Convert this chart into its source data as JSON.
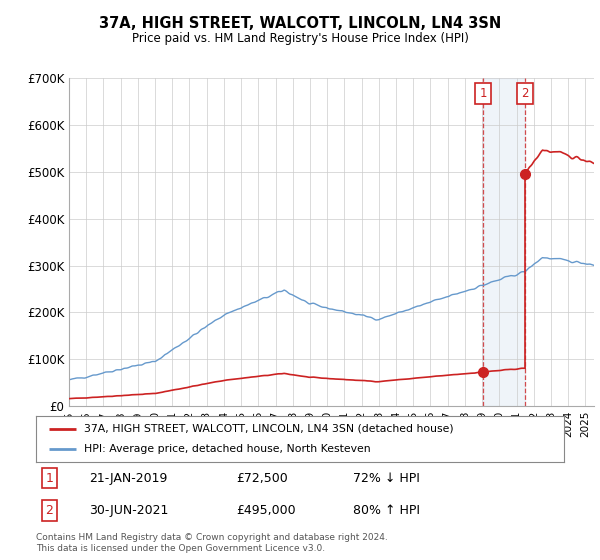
{
  "title": "37A, HIGH STREET, WALCOTT, LINCOLN, LN4 3SN",
  "subtitle": "Price paid vs. HM Land Registry's House Price Index (HPI)",
  "ylim": [
    0,
    700000
  ],
  "xlim_start": 1995.0,
  "xlim_end": 2025.5,
  "hpi_color": "#6699cc",
  "price_color": "#cc2222",
  "sale1_date": 2019.055,
  "sale1_price": 72500,
  "sale2_date": 2021.495,
  "sale2_price": 495000,
  "legend_line1": "37A, HIGH STREET, WALCOTT, LINCOLN, LN4 3SN (detached house)",
  "legend_line2": "HPI: Average price, detached house, North Kesteven",
  "annot1_date": "21-JAN-2019",
  "annot1_price": "£72,500",
  "annot1_hpi": "72% ↓ HPI",
  "annot2_date": "30-JUN-2021",
  "annot2_price": "£495,000",
  "annot2_hpi": "80% ↑ HPI",
  "footer": "Contains HM Land Registry data © Crown copyright and database right 2024.\nThis data is licensed under the Open Government Licence v3.0.",
  "background_color": "#ffffff",
  "grid_color": "#cccccc"
}
